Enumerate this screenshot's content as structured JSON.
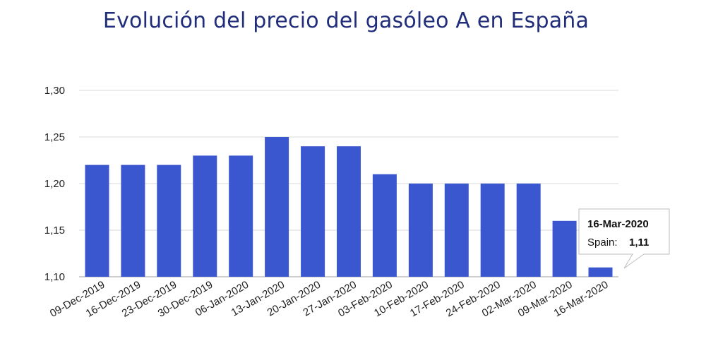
{
  "chart_data": {
    "type": "bar",
    "title": "Evolución del precio del gasóleo A en España",
    "categories": [
      "09-Dec-2019",
      "16-Dec-2019",
      "23-Dec-2019",
      "30-Dec-2019",
      "06-Jan-2020",
      "13-Jan-2020",
      "20-Jan-2020",
      "27-Jan-2020",
      "03-Feb-2020",
      "10-Feb-2020",
      "17-Feb-2020",
      "24-Feb-2020",
      "02-Mar-2020",
      "09-Mar-2020",
      "16-Mar-2020"
    ],
    "series": [
      {
        "name": "Spain",
        "values": [
          1.22,
          1.22,
          1.22,
          1.23,
          1.23,
          1.25,
          1.24,
          1.24,
          1.21,
          1.2,
          1.2,
          1.2,
          1.2,
          1.16,
          1.11
        ]
      }
    ],
    "ylim": [
      1.1,
      1.3
    ],
    "yticks": [
      "1,10",
      "1,15",
      "1,20",
      "1,25",
      "1,30"
    ],
    "ytick_values": [
      1.1,
      1.15,
      1.2,
      1.25,
      1.3
    ],
    "grid": true,
    "bar_color": "#3a57d0",
    "grid_color": "#d9d9d9",
    "tooltip": {
      "title": "16-Mar-2020",
      "series_label": "Spain:",
      "value_label": "1,11"
    }
  }
}
